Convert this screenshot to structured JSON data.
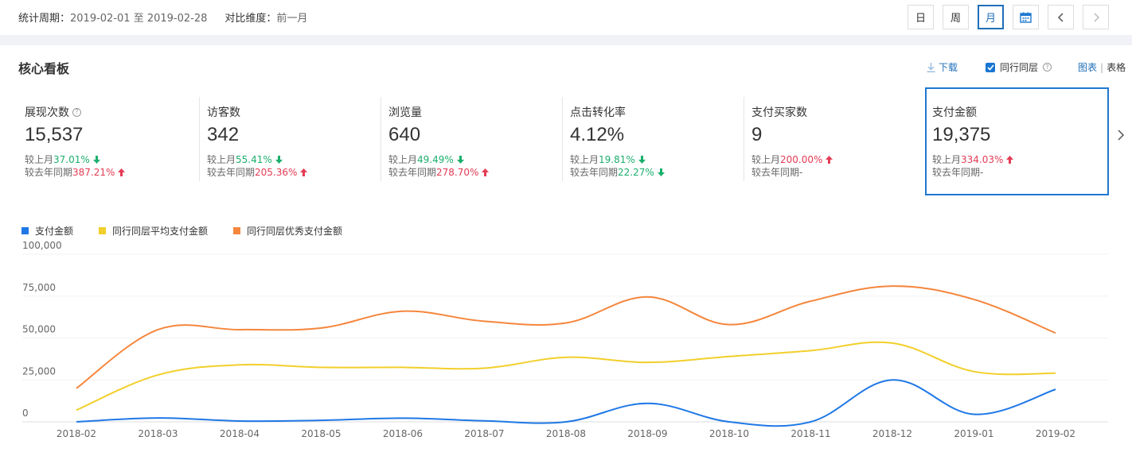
{
  "header": {
    "period_label": "统计周期：",
    "period_value": "2019-02-01 至 2019-02-28",
    "compare_label": "对比维度：",
    "compare_value": "前一月",
    "controls": [
      {
        "label": "日",
        "active": false
      },
      {
        "label": "周",
        "active": false
      },
      {
        "label": "月",
        "active": true
      }
    ],
    "calendar_icon": "calendar-icon",
    "prev_icon": "chevron-left-icon",
    "next_icon": "chevron-right-icon"
  },
  "board": {
    "title": "核心看板",
    "download_label": "下载",
    "peer_label": "同行同层",
    "peer_checked": true,
    "view_chart": "图表",
    "view_table": "表格"
  },
  "kpis": [
    {
      "name": "展现次数",
      "help": true,
      "value": "15,537",
      "mom_label": "较上月",
      "mom": "37.01%",
      "mom_dir": "down",
      "yoy_label": "较去年同期",
      "yoy": "387.21%",
      "yoy_dir": "up"
    },
    {
      "name": "访客数",
      "help": false,
      "value": "342",
      "mom_label": "较上月",
      "mom": "55.41%",
      "mom_dir": "down",
      "yoy_label": "较去年同期",
      "yoy": "205.36%",
      "yoy_dir": "up"
    },
    {
      "name": "浏览量",
      "help": false,
      "value": "640",
      "mom_label": "较上月",
      "mom": "49.49%",
      "mom_dir": "down",
      "yoy_label": "较去年同期",
      "yoy": "278.70%",
      "yoy_dir": "up"
    },
    {
      "name": "点击转化率",
      "help": false,
      "value": "4.12%",
      "mom_label": "较上月",
      "mom": "19.81%",
      "mom_dir": "down",
      "yoy_label": "较去年同期",
      "yoy": "22.27%",
      "yoy_dir": "down"
    },
    {
      "name": "支付买家数",
      "help": false,
      "value": "9",
      "mom_label": "较上月",
      "mom": "200.00%",
      "mom_dir": "up",
      "yoy_label": "较去年同期",
      "yoy": "-",
      "yoy_dir": "none"
    },
    {
      "name": "支付金额",
      "help": false,
      "value": "19,375",
      "mom_label": "较上月",
      "mom": "334.03%",
      "mom_dir": "up",
      "yoy_label": "较去年同期",
      "yoy": "-",
      "yoy_dir": "none",
      "selected": true
    }
  ],
  "colors": {
    "up": "#e43b54",
    "down": "#1aaf6c",
    "accent": "#1f78d1"
  },
  "chart_data": {
    "type": "line",
    "x": [
      "2018-02",
      "2018-03",
      "2018-04",
      "2018-05",
      "2018-06",
      "2018-07",
      "2018-08",
      "2018-09",
      "2018-10",
      "2018-11",
      "2018-12",
      "2019-01",
      "2019-02"
    ],
    "series": [
      {
        "name": "支付金额",
        "color": "#1f78e6",
        "values": [
          0,
          2300,
          500,
          900,
          2200,
          600,
          0,
          11000,
          0,
          0,
          25000,
          4500,
          19375
        ]
      },
      {
        "name": "同行同层平均支付金额",
        "color": "#f2cf2b",
        "values": [
          7000,
          28000,
          34000,
          32500,
          32500,
          32000,
          38500,
          35500,
          39000,
          42500,
          47000,
          30000,
          29000
        ]
      },
      {
        "name": "同行同层优秀支付金额",
        "color": "#f5863d",
        "values": [
          20000,
          55000,
          55000,
          56000,
          66000,
          60000,
          59000,
          74500,
          58000,
          72000,
          81000,
          73000,
          53000
        ]
      }
    ],
    "y_ticks": [
      "0",
      "25,000",
      "50,000",
      "75,000",
      "100,000"
    ],
    "ylim": [
      0,
      100000
    ],
    "grid": true,
    "legend": "top-left"
  }
}
